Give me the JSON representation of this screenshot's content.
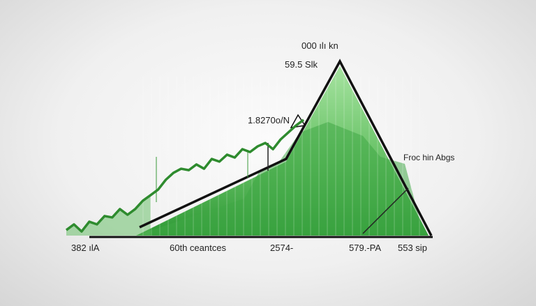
{
  "chart_data": {
    "type": "area",
    "title": "",
    "xlabel": "",
    "ylabel": "",
    "grid": false,
    "series": [
      {
        "values": [
          3.9,
          7.1,
          3.1,
          8.6,
          7.1,
          11.8,
          11.0,
          15.7,
          12.5,
          15.7,
          20.4,
          23.5,
          26.7,
          32.2,
          36.1,
          38.4,
          37.6,
          40.8,
          38.4,
          43.9,
          42.4,
          46.3,
          44.7,
          49.4,
          47.8,
          51.0,
          52.9,
          49.4,
          54.9,
          58.8,
          62.7,
          65.9
        ]
      }
    ],
    "peak_value": 100,
    "annotations": {
      "top": "000 ılı kn",
      "peak": "59.5 Slk",
      "mid": "1.8270o/N",
      "right": "Froc hin Abgs"
    },
    "x_tick_labels": [
      "382 ılA",
      "60th ceantces",
      "2574-",
      "579.-PA",
      "553 sip"
    ],
    "colors": {
      "line": "#2e8b2e",
      "area_light": "#8fd88f",
      "area_dark": "#2f9a36",
      "outline": "#111111"
    }
  }
}
